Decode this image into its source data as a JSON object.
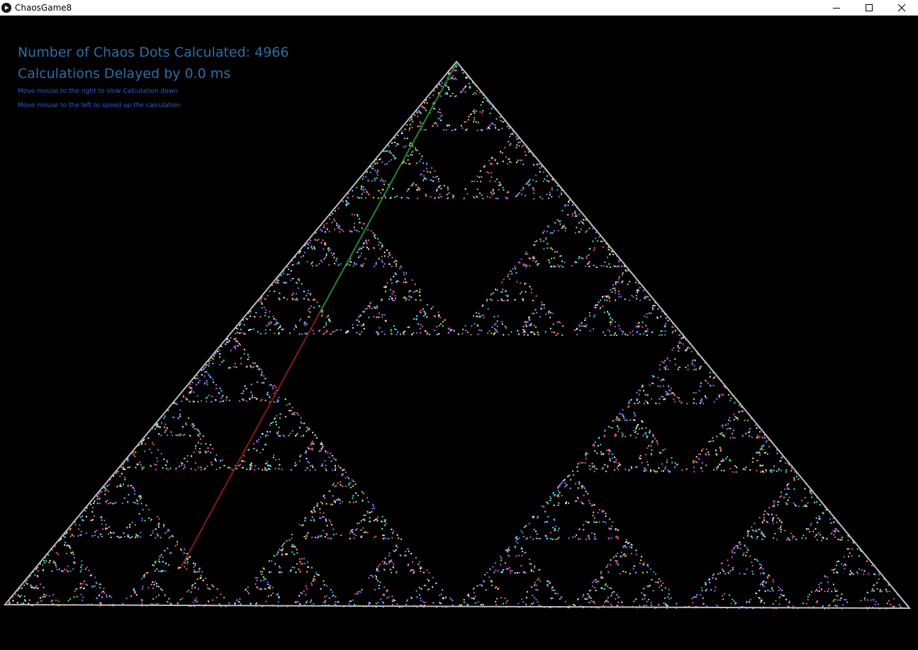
{
  "window": {
    "title": "ChaosGame8",
    "icons": {
      "app": "play-icon",
      "minimize": "minimize-icon",
      "maximize": "maximize-icon",
      "close": "close-icon"
    }
  },
  "hud": {
    "dots_line": "Number of Chaos Dots Calculated: 4966",
    "delay_line": "Calculations Delayed by 0.0 ms",
    "hint_right": "Move mouse to the right to slow Calculation down",
    "hint_left": "Move mouse to the left to speed up the calculation"
  },
  "colors": {
    "hud_text": "#2a6fa8",
    "hint_text": "#2d5fcf",
    "triangle_outline": "#bdbdbd",
    "line_upper": "#1f8a2a",
    "line_lower": "#8a1a1a",
    "background": "#000000"
  }
}
